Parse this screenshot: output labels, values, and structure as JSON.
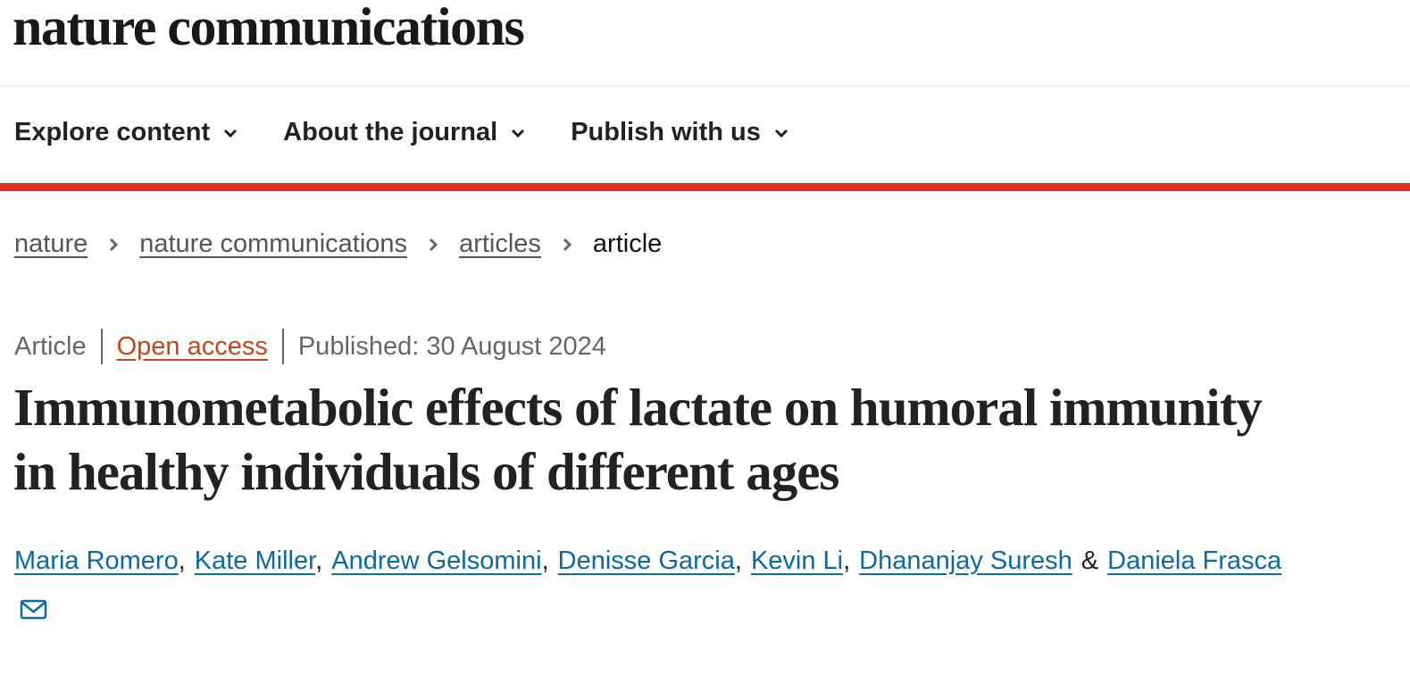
{
  "header": {
    "logo": "nature communications"
  },
  "nav": {
    "items": [
      "Explore content",
      "About the journal",
      "Publish with us"
    ]
  },
  "breadcrumbs": [
    "nature",
    "nature communications",
    "articles",
    "article"
  ],
  "meta": {
    "type": "Article",
    "access": "Open access",
    "published": "Published: 30 August 2024"
  },
  "title": "Immunometabolic effects of lactate on humoral immunity in healthy individuals of different ages",
  "authors": [
    "Maria Romero",
    "Kate Miller",
    "Andrew Gelsomini",
    "Denisse Garcia",
    "Kevin Li",
    "Dhananjay Suresh",
    "Daniela Frasca"
  ],
  "author_separators": [
    ",",
    ",",
    ",",
    ",",
    ",",
    "&"
  ]
}
